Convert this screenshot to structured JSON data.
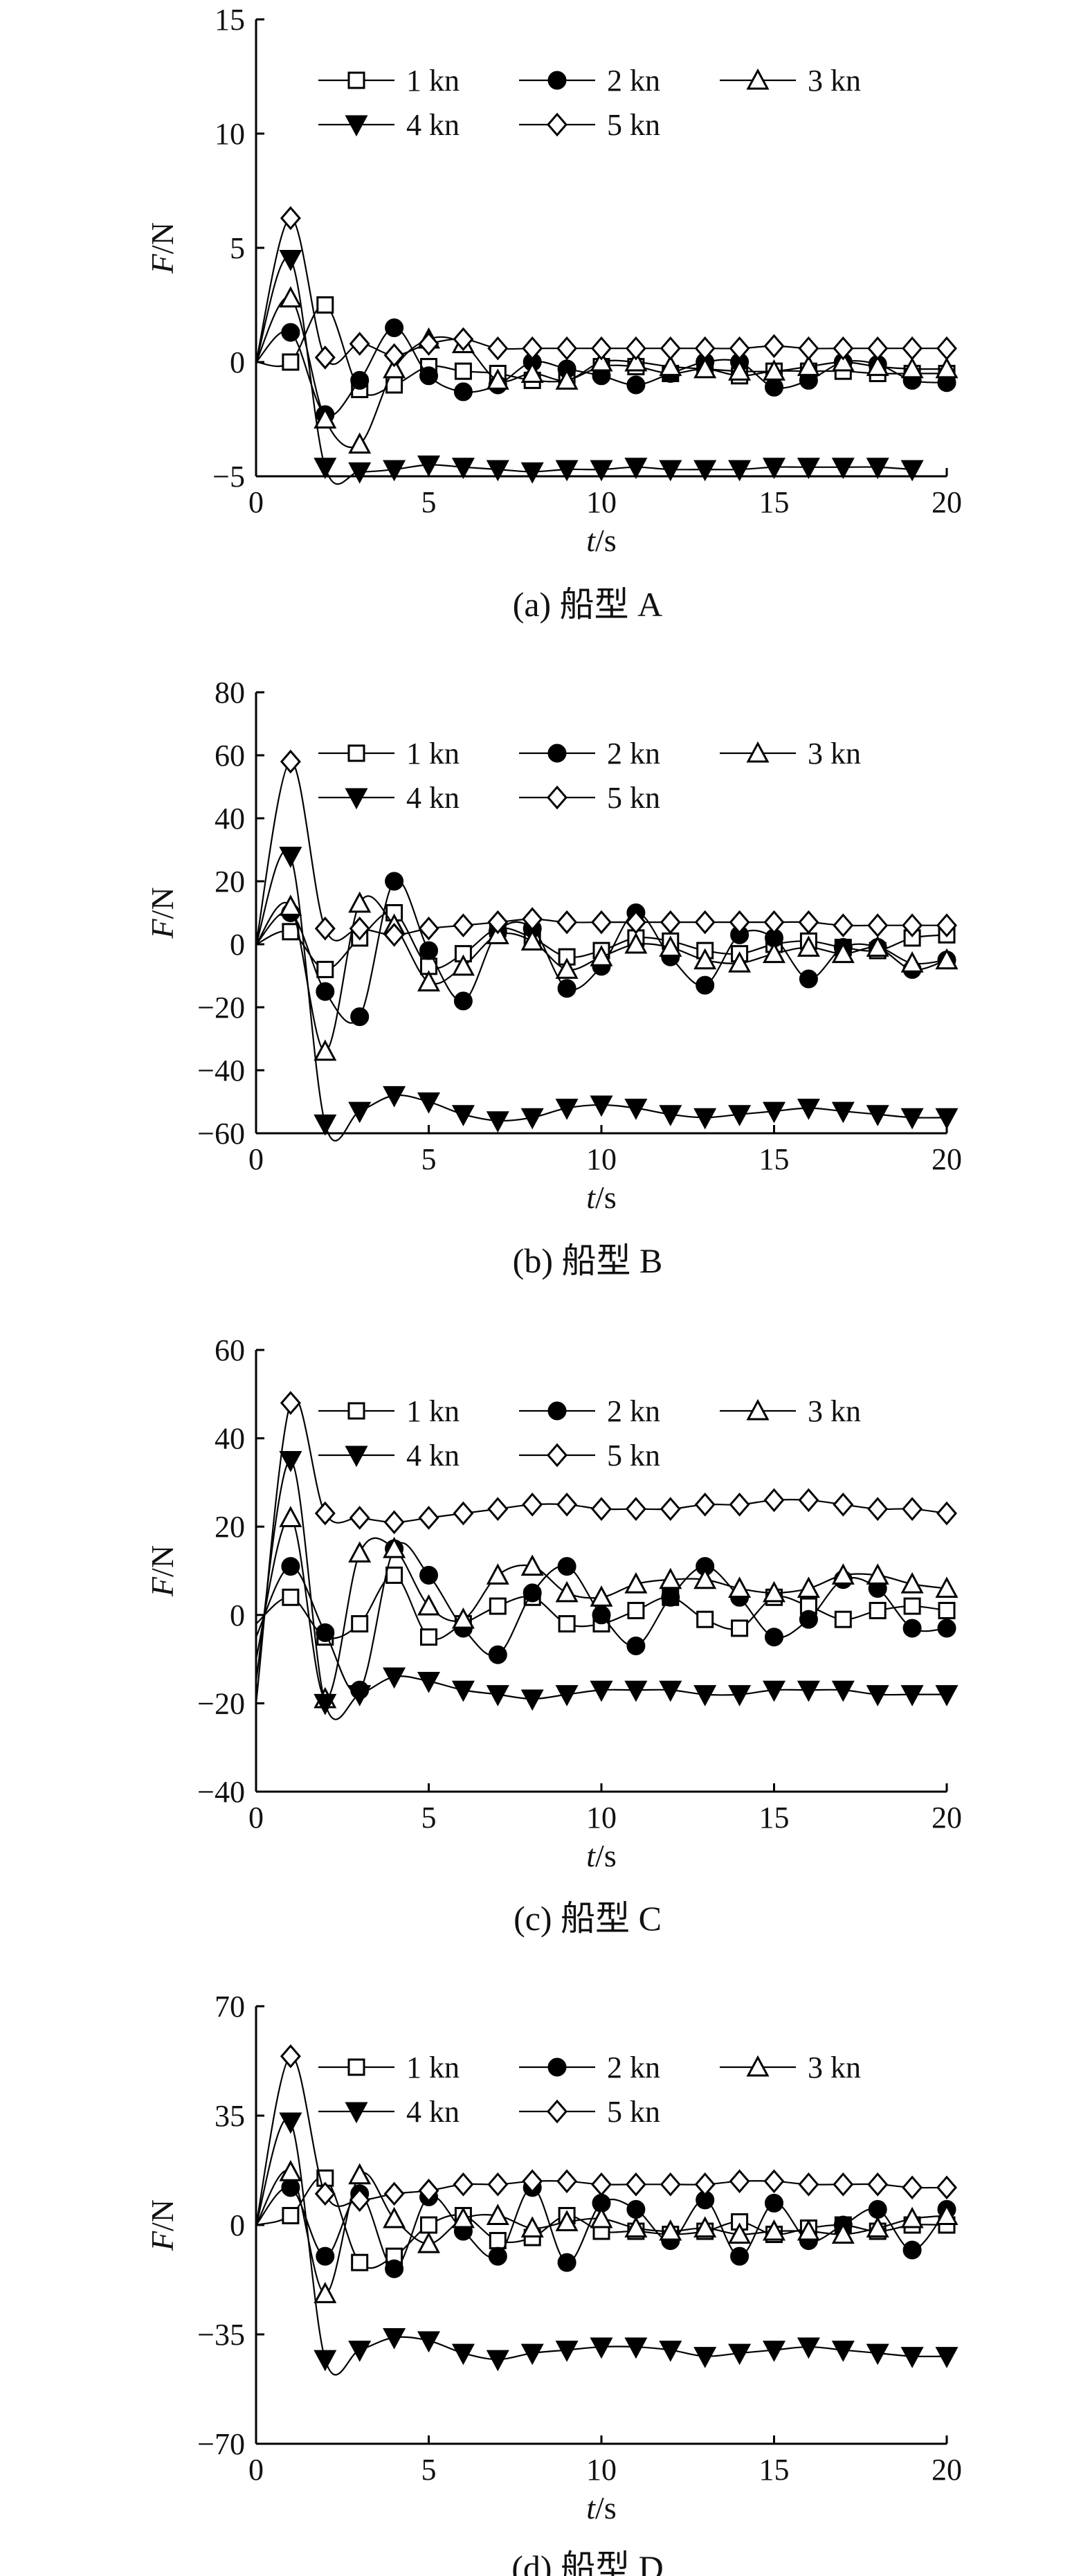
{
  "legend": [
    "1 kn",
    "2 kn",
    "3 kn",
    "4 kn",
    "5 kn"
  ],
  "marker_styles": [
    "square-open",
    "circle-filled",
    "triangle-up-open",
    "triangle-down-filled",
    "diamond-open"
  ],
  "chart_data": [
    {
      "type": "line",
      "caption": "(a) 船型 A",
      "xlabel_italic": "t",
      "xlabel_unit": "/s",
      "ylabel_italic": "F",
      "ylabel_unit": "/N",
      "xlim": [
        0,
        20
      ],
      "xticks": [
        0,
        5,
        10,
        15,
        20
      ],
      "ylim": [
        -5,
        15
      ],
      "yticks": [
        -5,
        0,
        5,
        10,
        15
      ],
      "grid": false,
      "legend_position": "top",
      "series": [
        {
          "name": "1 kn",
          "marker": "square-open",
          "x": [
            0,
            1,
            2,
            3,
            4,
            5,
            6,
            7,
            8,
            9,
            10,
            11,
            12,
            13,
            14,
            15,
            16,
            17,
            18,
            19,
            20
          ],
          "y": [
            0,
            0,
            2.5,
            -1.2,
            -1.0,
            -0.2,
            -0.4,
            -0.5,
            -0.8,
            -0.8,
            -0.2,
            -0.2,
            -0.5,
            -0.3,
            -0.6,
            -0.4,
            -0.4,
            -0.4,
            -0.5,
            -0.5,
            -0.5
          ]
        },
        {
          "name": "2 kn",
          "marker": "circle-filled",
          "x": [
            0,
            1,
            2,
            3,
            4,
            5,
            6,
            7,
            8,
            9,
            10,
            11,
            12,
            13,
            14,
            15,
            16,
            17,
            18,
            19,
            20
          ],
          "y": [
            0,
            1.3,
            -2.3,
            -0.8,
            1.5,
            -0.6,
            -1.3,
            -1.0,
            0.0,
            -0.3,
            -0.6,
            -1.0,
            -0.5,
            0.0,
            0.0,
            -1.1,
            -0.8,
            0.0,
            -0.1,
            -0.8,
            -0.9
          ]
        },
        {
          "name": "3 kn",
          "marker": "triangle-up-open",
          "x": [
            0,
            1,
            2,
            3,
            4,
            5,
            6,
            7,
            8,
            9,
            10,
            11,
            12,
            13,
            14,
            15,
            16,
            17,
            18,
            19,
            20
          ],
          "y": [
            0,
            2.8,
            -2.5,
            -3.6,
            -0.3,
            1.0,
            0.8,
            -0.8,
            -0.5,
            -0.8,
            0.0,
            0.0,
            -0.2,
            -0.3,
            -0.4,
            -0.4,
            -0.2,
            0.0,
            -0.2,
            -0.3,
            -0.3
          ]
        },
        {
          "name": "4 kn",
          "marker": "triangle-down-filled",
          "x": [
            0,
            1,
            2,
            3,
            4,
            5,
            6,
            7,
            8,
            9,
            10,
            11,
            12,
            13,
            14,
            15,
            16,
            17,
            18,
            19
          ],
          "y": [
            0,
            4.5,
            -4.6,
            -4.8,
            -4.7,
            -4.5,
            -4.6,
            -4.7,
            -4.8,
            -4.7,
            -4.7,
            -4.6,
            -4.7,
            -4.7,
            -4.7,
            -4.6,
            -4.6,
            -4.6,
            -4.6,
            -4.7
          ]
        },
        {
          "name": "5 kn",
          "marker": "diamond-open",
          "x": [
            0,
            1,
            2,
            3,
            4,
            5,
            6,
            7,
            8,
            9,
            10,
            11,
            12,
            13,
            14,
            15,
            16,
            17,
            18,
            19,
            20
          ],
          "y": [
            0,
            6.3,
            0.2,
            0.8,
            0.3,
            0.8,
            1.0,
            0.6,
            0.6,
            0.6,
            0.6,
            0.6,
            0.6,
            0.6,
            0.6,
            0.7,
            0.6,
            0.6,
            0.6,
            0.6,
            0.6
          ]
        }
      ]
    },
    {
      "type": "line",
      "caption": "(b) 船型 B",
      "xlabel_italic": "t",
      "xlabel_unit": "/s",
      "ylabel_italic": "F",
      "ylabel_unit": "/N",
      "xlim": [
        0,
        20
      ],
      "xticks": [
        0,
        5,
        10,
        15,
        20
      ],
      "ylim": [
        -60,
        80
      ],
      "yticks": [
        -60,
        -40,
        -20,
        0,
        20,
        40,
        60,
        80
      ],
      "grid": false,
      "legend_position": "top",
      "series": [
        {
          "name": "1 kn",
          "marker": "square-open",
          "x": [
            0,
            1,
            2,
            3,
            4,
            5,
            6,
            7,
            8,
            9,
            10,
            11,
            12,
            13,
            14,
            15,
            16,
            17,
            18,
            19,
            20
          ],
          "y": [
            0,
            4,
            -8,
            2,
            10,
            -7,
            -3,
            5,
            2,
            -4,
            -2,
            2,
            1,
            -2,
            -3,
            0,
            1,
            -1,
            -2,
            2,
            3
          ]
        },
        {
          "name": "2 kn",
          "marker": "circle-filled",
          "x": [
            0,
            1,
            2,
            3,
            4,
            5,
            6,
            7,
            8,
            9,
            10,
            11,
            12,
            13,
            14,
            15,
            16,
            17,
            18,
            19,
            20
          ],
          "y": [
            0,
            10,
            -15,
            -23,
            20,
            -2,
            -18,
            4,
            5,
            -14,
            -7,
            10,
            -4,
            -13,
            3,
            2,
            -11,
            -1,
            -1,
            -8,
            -5
          ]
        },
        {
          "name": "3 kn",
          "marker": "triangle-up-open",
          "x": [
            0,
            1,
            2,
            3,
            4,
            5,
            6,
            7,
            8,
            9,
            10,
            11,
            12,
            13,
            14,
            15,
            16,
            17,
            18,
            19,
            20
          ],
          "y": [
            0,
            12,
            -34,
            13,
            6,
            -12,
            -7,
            3,
            1,
            -8,
            -4,
            0,
            -1,
            -5,
            -6,
            -3,
            -1,
            -3,
            -1,
            -6,
            -5
          ]
        },
        {
          "name": "4 kn",
          "marker": "triangle-down-filled",
          "x": [
            0,
            1,
            2,
            3,
            4,
            5,
            6,
            7,
            8,
            9,
            10,
            11,
            12,
            13,
            14,
            15,
            16,
            17,
            18,
            19,
            20
          ],
          "y": [
            0,
            28,
            -57,
            -53,
            -48,
            -50,
            -54,
            -56,
            -55,
            -52,
            -51,
            -52,
            -54,
            -55,
            -54,
            -53,
            -52,
            -53,
            -54,
            -55,
            -55
          ]
        },
        {
          "name": "5 kn",
          "marker": "diamond-open",
          "x": [
            0,
            1,
            2,
            3,
            4,
            5,
            6,
            7,
            8,
            9,
            10,
            11,
            12,
            13,
            14,
            15,
            16,
            17,
            18,
            19,
            20
          ],
          "y": [
            0,
            58,
            5,
            5,
            3,
            5,
            6,
            7,
            8,
            7,
            7,
            7,
            7,
            7,
            7,
            7,
            7,
            6,
            6,
            6,
            6
          ]
        }
      ]
    },
    {
      "type": "line",
      "caption": "(c) 船型 C",
      "xlabel_italic": "t",
      "xlabel_unit": "/s",
      "ylabel_italic": "F",
      "ylabel_unit": "/N",
      "xlim": [
        0,
        20
      ],
      "xticks": [
        0,
        5,
        10,
        15,
        20
      ],
      "ylim": [
        -40,
        60
      ],
      "yticks": [
        -40,
        -20,
        0,
        20,
        40,
        60
      ],
      "grid": false,
      "legend_position": "top",
      "series": [
        {
          "name": "1 kn",
          "marker": "square-open",
          "x": [
            0,
            1,
            2,
            3,
            4,
            5,
            6,
            7,
            8,
            9,
            10,
            11,
            12,
            13,
            14,
            15,
            16,
            17,
            18,
            19,
            20
          ],
          "y": [
            -2,
            4,
            -5,
            -2,
            9,
            -5,
            -2,
            2,
            4,
            -2,
            -2,
            1,
            4,
            -1,
            -3,
            4,
            2,
            -1,
            1,
            2,
            1
          ]
        },
        {
          "name": "2 kn",
          "marker": "circle-filled",
          "x": [
            0,
            1,
            2,
            3,
            4,
            5,
            6,
            7,
            8,
            9,
            10,
            11,
            12,
            13,
            14,
            15,
            16,
            17,
            18,
            19,
            20
          ],
          "y": [
            -5,
            11,
            -4,
            -17,
            15,
            9,
            -3,
            -9,
            5,
            11,
            0,
            -7,
            4,
            11,
            4,
            -5,
            -1,
            8,
            6,
            -3,
            -3
          ]
        },
        {
          "name": "3 kn",
          "marker": "triangle-up-open",
          "x": [
            0,
            1,
            2,
            3,
            4,
            5,
            6,
            7,
            8,
            9,
            10,
            11,
            12,
            13,
            14,
            15,
            16,
            17,
            18,
            19,
            20
          ],
          "y": [
            -10,
            22,
            -19,
            14,
            15,
            2,
            -1,
            9,
            11,
            5,
            4,
            7,
            8,
            8,
            6,
            5,
            6,
            9,
            9,
            7,
            6
          ]
        },
        {
          "name": "4 kn",
          "marker": "triangle-down-filled",
          "x": [
            0,
            1,
            2,
            3,
            4,
            5,
            6,
            7,
            8,
            9,
            10,
            11,
            12,
            13,
            14,
            15,
            16,
            17,
            18,
            19,
            20
          ],
          "y": [
            -15,
            35,
            -20,
            -18,
            -14,
            -15,
            -17,
            -18,
            -19,
            -18,
            -17,
            -17,
            -17,
            -18,
            -18,
            -17,
            -17,
            -17,
            -18,
            -18,
            -18
          ]
        },
        {
          "name": "5 kn",
          "marker": "diamond-open",
          "x": [
            0,
            1,
            2,
            3,
            4,
            5,
            6,
            7,
            8,
            9,
            10,
            11,
            12,
            13,
            14,
            15,
            16,
            17,
            18,
            19,
            20
          ],
          "y": [
            -20,
            48,
            23,
            22,
            21,
            22,
            23,
            24,
            25,
            25,
            24,
            24,
            24,
            25,
            25,
            26,
            26,
            25,
            24,
            24,
            23
          ]
        }
      ]
    },
    {
      "type": "line",
      "caption": "(d) 船型 D",
      "xlabel_italic": "t",
      "xlabel_unit": "/s",
      "ylabel_italic": "F",
      "ylabel_unit": "/N",
      "xlim": [
        0,
        20
      ],
      "xticks": [
        0,
        5,
        10,
        15,
        20
      ],
      "ylim": [
        -70,
        70
      ],
      "yticks": [
        -70,
        -35,
        0,
        35,
        70
      ],
      "grid": false,
      "legend_position": "top",
      "series": [
        {
          "name": "1 kn",
          "marker": "square-open",
          "x": [
            0,
            1,
            2,
            3,
            4,
            5,
            6,
            7,
            8,
            9,
            10,
            11,
            12,
            13,
            14,
            15,
            16,
            17,
            18,
            19,
            20
          ],
          "y": [
            0,
            3,
            15,
            -12,
            -10,
            0,
            3,
            -5,
            -4,
            3,
            -2,
            -2,
            -3,
            -2,
            1,
            -3,
            -1,
            0,
            -2,
            0,
            0
          ]
        },
        {
          "name": "2 kn",
          "marker": "circle-filled",
          "x": [
            0,
            1,
            2,
            3,
            4,
            5,
            6,
            7,
            8,
            9,
            10,
            11,
            12,
            13,
            14,
            15,
            16,
            17,
            18,
            19,
            20
          ],
          "y": [
            0,
            12,
            -10,
            10,
            -14,
            9,
            -2,
            -10,
            12,
            -12,
            7,
            5,
            -5,
            8,
            -10,
            7,
            -5,
            0,
            5,
            -8,
            5
          ]
        },
        {
          "name": "3 kn",
          "marker": "triangle-up-open",
          "x": [
            0,
            1,
            2,
            3,
            4,
            5,
            6,
            7,
            8,
            9,
            10,
            11,
            12,
            13,
            14,
            15,
            16,
            17,
            18,
            19,
            20
          ],
          "y": [
            0,
            17,
            -22,
            16,
            2,
            -6,
            2,
            3,
            -1,
            1,
            2,
            -1,
            -2,
            -1,
            -3,
            -2,
            -2,
            -3,
            -1,
            2,
            3
          ]
        },
        {
          "name": "4 kn",
          "marker": "triangle-down-filled",
          "x": [
            0,
            1,
            2,
            3,
            4,
            5,
            6,
            7,
            8,
            9,
            10,
            11,
            12,
            13,
            14,
            15,
            16,
            17,
            18,
            19,
            20
          ],
          "y": [
            0,
            33,
            -43,
            -40,
            -36,
            -37,
            -41,
            -43,
            -41,
            -40,
            -39,
            -39,
            -40,
            -42,
            -41,
            -40,
            -39,
            -40,
            -41,
            -42,
            -42
          ]
        },
        {
          "name": "5 kn",
          "marker": "diamond-open",
          "x": [
            0,
            1,
            2,
            3,
            4,
            5,
            6,
            7,
            8,
            9,
            10,
            11,
            12,
            13,
            14,
            15,
            16,
            17,
            18,
            19,
            20
          ],
          "y": [
            0,
            54,
            10,
            8,
            10,
            11,
            13,
            13,
            14,
            14,
            13,
            13,
            13,
            13,
            14,
            14,
            13,
            13,
            13,
            12,
            12
          ]
        }
      ]
    }
  ]
}
